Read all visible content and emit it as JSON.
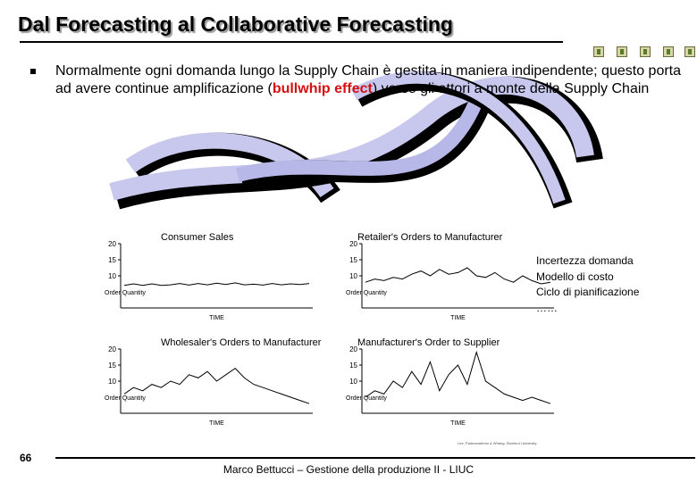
{
  "slide": {
    "title": "Dal Forecasting al Collaborative Forecasting",
    "bullet": {
      "before": "Normalmente ogni domanda lungo la Supply Chain è gestita in maniera indipendente; questo porta ad avere continue amplificazione (",
      "highlight": "bullwhip effect",
      "after": ") verso gli attori a monte della Supply Chain"
    },
    "side_list": [
      "Incertezza domanda",
      "Modello di costo",
      "Ciclo di pianificazione",
      "……"
    ],
    "page_number": "66",
    "footer": "Marco Bettucci – Gestione della produzione II - LIUC",
    "credit": "Lee, Padmanabhan & Whang; Stanford University"
  },
  "chart_data": [
    {
      "type": "line",
      "title": "Consumer Sales",
      "yticks": [
        "20",
        "15",
        "10"
      ],
      "ylabel": "Order Quantity",
      "xlabel": "TIME",
      "ylim": [
        0,
        20
      ],
      "values": [
        7,
        7.5,
        7,
        7.5,
        7,
        7.2,
        7.6,
        7.1,
        7.6,
        7.2,
        7.7,
        7.3,
        7.8,
        7.2,
        7.4,
        7.1,
        7.6,
        7.2,
        7.5,
        7.3,
        7.6
      ]
    },
    {
      "type": "line",
      "title": "Retailer's Orders to Manufacturer",
      "yticks": [
        "20",
        "15",
        "10"
      ],
      "ylabel": "Order Quantity",
      "xlabel": "TIME",
      "ylim": [
        0,
        20
      ],
      "values": [
        8,
        9,
        8.5,
        9.5,
        9,
        10.5,
        11.5,
        10,
        12,
        10.5,
        11,
        12.5,
        10,
        9.5,
        11,
        9,
        8,
        10,
        8.5,
        7.5,
        8
      ]
    },
    {
      "type": "line",
      "title": "Wholesaler's Orders to Manufacturer",
      "yticks": [
        "20",
        "15",
        "10"
      ],
      "ylabel": "Order Quantity",
      "xlabel": "TIME",
      "ylim": [
        0,
        20
      ],
      "values": [
        6,
        8,
        7,
        9,
        8,
        10,
        9,
        12,
        11,
        13,
        10,
        12,
        14,
        11,
        9,
        8,
        7,
        6,
        5,
        4,
        3
      ]
    },
    {
      "type": "line",
      "title": "Manufacturer's Order to Supplier",
      "yticks": [
        "20",
        "15",
        "10"
      ],
      "ylabel": "Order Quantity",
      "xlabel": "TIME",
      "ylim": [
        0,
        20
      ],
      "values": [
        5,
        7,
        6,
        10,
        8,
        13,
        9,
        16,
        7,
        12,
        15,
        9,
        19,
        10,
        8,
        6,
        5,
        4,
        5,
        4,
        3
      ]
    }
  ]
}
